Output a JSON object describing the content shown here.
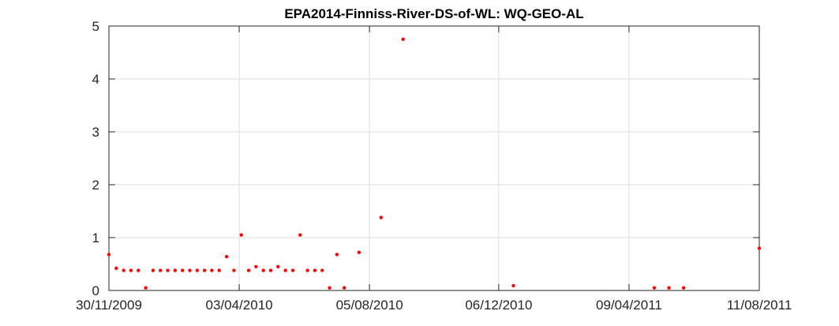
{
  "chart_data": {
    "type": "scatter",
    "title": "EPA2014-Finniss-River-DS-of-WL: WQ-GEO-AL",
    "xlabel": "",
    "ylabel": "",
    "xlim": [
      "2009-11-30",
      "2011-08-11"
    ],
    "ylim": [
      0,
      5
    ],
    "x_tick_labels": [
      "30/11/2009",
      "03/04/2010",
      "05/08/2010",
      "06/12/2010",
      "09/04/2011",
      "11/08/2011"
    ],
    "x_ticks": [
      "2009-11-30",
      "2010-04-03",
      "2010-08-05",
      "2010-12-06",
      "2011-04-09",
      "2011-08-11"
    ],
    "y_tick_labels": [
      "0",
      "1",
      "2",
      "3",
      "4",
      "5"
    ],
    "y_ticks": [
      0,
      1,
      2,
      3,
      4,
      5
    ],
    "grid": true,
    "marker_color": "#ff0000",
    "series": [
      {
        "x": [
          "2009-11-30",
          "2009-12-07",
          "2009-12-14",
          "2009-12-21",
          "2009-12-28",
          "2010-01-04",
          "2010-01-11",
          "2010-01-18",
          "2010-01-25",
          "2010-02-01",
          "2010-02-08",
          "2010-02-15",
          "2010-02-22",
          "2010-03-01",
          "2010-03-08",
          "2010-03-15",
          "2010-03-22",
          "2010-03-29",
          "2010-04-05",
          "2010-04-12",
          "2010-04-19",
          "2010-04-26",
          "2010-05-03",
          "2010-05-10",
          "2010-05-17",
          "2010-05-24",
          "2010-05-31",
          "2010-06-07",
          "2010-06-14",
          "2010-06-21",
          "2010-06-28",
          "2010-07-05",
          "2010-07-12",
          "2010-07-26",
          "2010-08-16",
          "2010-09-06",
          "2010-12-20",
          "2011-05-03",
          "2011-05-17",
          "2011-05-31",
          "2011-08-11"
        ],
        "y": [
          0.68,
          0.42,
          0.38,
          0.38,
          0.38,
          0.05,
          0.38,
          0.38,
          0.38,
          0.38,
          0.38,
          0.38,
          0.38,
          0.38,
          0.38,
          0.38,
          0.64,
          0.38,
          1.05,
          0.38,
          0.45,
          0.38,
          0.38,
          0.45,
          0.38,
          0.38,
          1.05,
          0.38,
          0.38,
          0.38,
          0.05,
          0.68,
          0.05,
          0.72,
          1.38,
          4.75,
          0.09,
          0.05,
          0.05,
          0.05,
          0.8
        ]
      }
    ]
  }
}
